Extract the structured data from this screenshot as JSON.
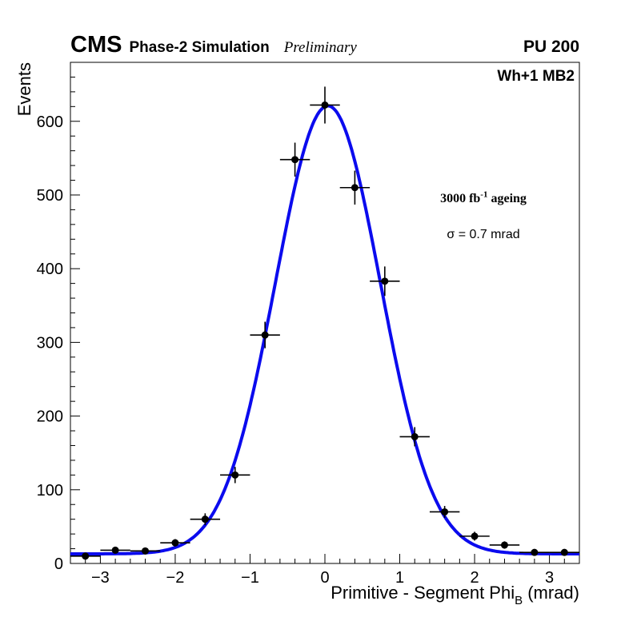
{
  "header": {
    "experiment": "CMS",
    "context": "Phase-2 Simulation",
    "status": "Preliminary",
    "pileup": "PU 200",
    "chamber": "Wh+1 MB2"
  },
  "annotations": {
    "ageing_prefix": "3000 fb",
    "ageing_sup": "-1",
    "ageing_suffix": " ageing",
    "sigma_text": "σ = 0.7 mrad"
  },
  "chart_data": {
    "type": "scatter",
    "title": "",
    "ylabel": "Events",
    "xlabel_main": "Primitive - Segment Phi",
    "xlabel_sub": "B",
    "xlabel_suffix": " (mrad)",
    "xlim": [
      -3.4,
      3.4
    ],
    "ylim": [
      0,
      680
    ],
    "grid": false,
    "x_minor_step": 0.2,
    "y_minor_step": 20,
    "xticks": [
      {
        "v": -3,
        "label": "−3"
      },
      {
        "v": -2,
        "label": "−2"
      },
      {
        "v": -1,
        "label": "−1"
      },
      {
        "v": 0,
        "label": "0"
      },
      {
        "v": 1,
        "label": "1"
      },
      {
        "v": 2,
        "label": "2"
      },
      {
        "v": 3,
        "label": "3"
      }
    ],
    "yticks": [
      {
        "v": 0,
        "label": "0"
      },
      {
        "v": 100,
        "label": "100"
      },
      {
        "v": 200,
        "label": "200"
      },
      {
        "v": 300,
        "label": "300"
      },
      {
        "v": 400,
        "label": "400"
      },
      {
        "v": 500,
        "label": "500"
      },
      {
        "v": 600,
        "label": "600"
      }
    ],
    "points": [
      {
        "x": -3.2,
        "y": 10,
        "ex": 0.2,
        "ey": 3
      },
      {
        "x": -2.8,
        "y": 18,
        "ex": 0.2,
        "ey": 4
      },
      {
        "x": -2.4,
        "y": 17,
        "ex": 0.2,
        "ey": 4
      },
      {
        "x": -2.0,
        "y": 28,
        "ex": 0.2,
        "ey": 5
      },
      {
        "x": -1.6,
        "y": 60,
        "ex": 0.2,
        "ey": 8
      },
      {
        "x": -1.2,
        "y": 120,
        "ex": 0.2,
        "ey": 11
      },
      {
        "x": -0.8,
        "y": 310,
        "ex": 0.2,
        "ey": 18
      },
      {
        "x": -0.4,
        "y": 548,
        "ex": 0.2,
        "ey": 23
      },
      {
        "x": 0.0,
        "y": 622,
        "ex": 0.2,
        "ey": 25
      },
      {
        "x": 0.4,
        "y": 510,
        "ex": 0.2,
        "ey": 23
      },
      {
        "x": 0.8,
        "y": 383,
        "ex": 0.2,
        "ey": 20
      },
      {
        "x": 1.2,
        "y": 172,
        "ex": 0.2,
        "ey": 13
      },
      {
        "x": 1.6,
        "y": 70,
        "ex": 0.2,
        "ey": 8
      },
      {
        "x": 2.0,
        "y": 37,
        "ex": 0.2,
        "ey": 6
      },
      {
        "x": 2.4,
        "y": 25,
        "ex": 0.2,
        "ey": 5
      },
      {
        "x": 2.8,
        "y": 15,
        "ex": 0.2,
        "ey": 4
      },
      {
        "x": 3.2,
        "y": 15,
        "ex": 0.2,
        "ey": 4
      }
    ],
    "fit": {
      "shape": "gaussian+const",
      "amplitude": 608,
      "mean": 0.04,
      "sigma": 0.7,
      "baseline": 13
    },
    "colors": {
      "fit": "#0b0bee",
      "marker": "#000000",
      "axis": "#000000"
    }
  }
}
